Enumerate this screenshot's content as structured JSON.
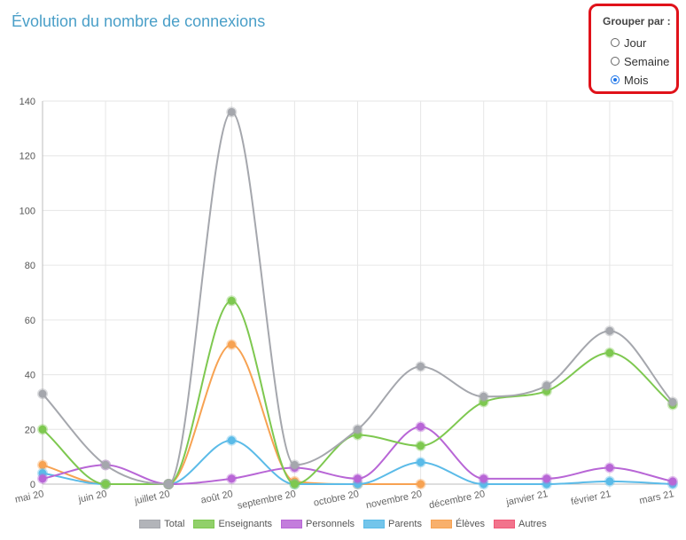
{
  "title": "Évolution du nombre de connexions",
  "grouping": {
    "label": "Grouper par :",
    "options": [
      {
        "label": "Jour",
        "checked": false
      },
      {
        "label": "Semaine",
        "checked": false
      },
      {
        "label": "Mois",
        "checked": true
      }
    ]
  },
  "chart_data": {
    "type": "line",
    "x": [
      "mai 20",
      "juin 20",
      "juillet 20",
      "août 20",
      "septembre 20",
      "octobre 20",
      "novembre 20",
      "décembre 20",
      "janvier 21",
      "février 21",
      "mars 21"
    ],
    "ylim": [
      0,
      140
    ],
    "yticks": [
      0,
      20,
      40,
      60,
      80,
      100,
      120,
      140
    ],
    "grid": true,
    "legend_position": "bottom",
    "series": [
      {
        "name": "Total",
        "color": "#a5a7ad",
        "values": [
          33,
          7,
          0,
          136,
          7,
          20,
          43,
          32,
          36,
          56,
          30
        ]
      },
      {
        "name": "Enseignants",
        "color": "#7ec850",
        "values": [
          20,
          0,
          0,
          67,
          0,
          18,
          14,
          30,
          34,
          48,
          29
        ]
      },
      {
        "name": "Personnels",
        "color": "#b866d6",
        "values": [
          2,
          7,
          0,
          2,
          6,
          2,
          21,
          2,
          2,
          6,
          1
        ]
      },
      {
        "name": "Parents",
        "color": "#5bbbe8",
        "values": [
          4,
          0,
          0,
          16,
          0,
          0,
          8,
          0,
          0,
          1,
          0
        ]
      },
      {
        "name": "Élèves",
        "color": "#f7a252",
        "values": [
          7,
          0,
          0,
          51,
          1,
          0,
          0,
          null,
          null,
          null,
          null
        ]
      },
      {
        "name": "Autres",
        "color": "#f05a78",
        "values": [
          null,
          null,
          null,
          null,
          null,
          null,
          null,
          null,
          null,
          null,
          null
        ]
      }
    ]
  }
}
